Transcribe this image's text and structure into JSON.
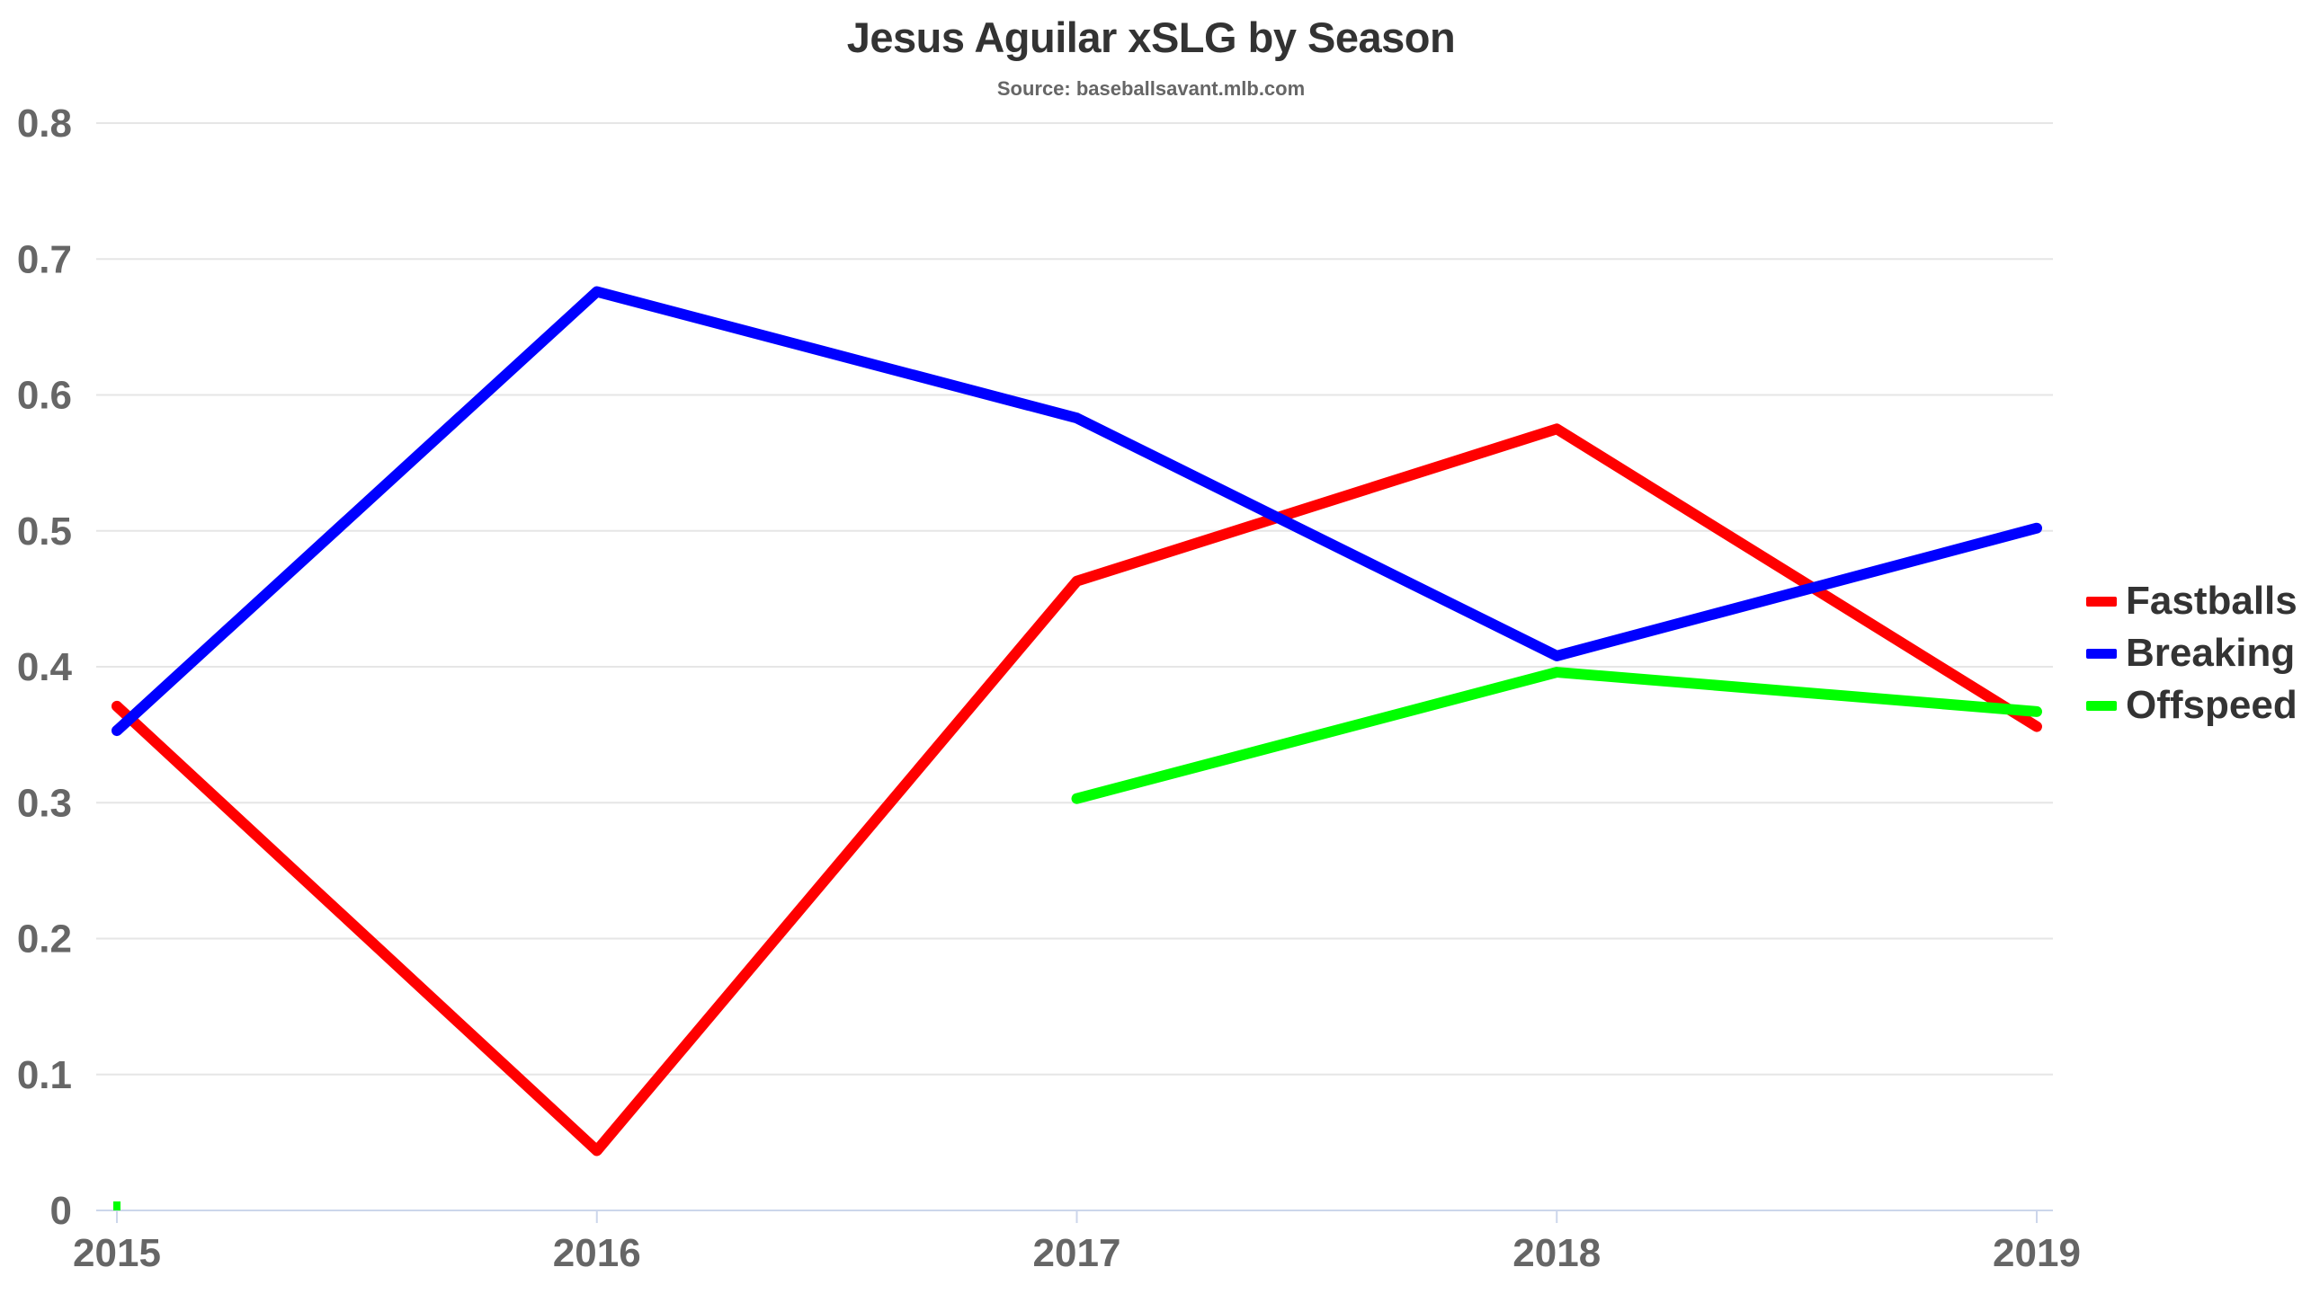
{
  "title": "Jesus Aguilar xSLG by Season",
  "subtitle": "Source: baseballsavant.mlb.com",
  "chart_data": {
    "type": "line",
    "title": "Jesus Aguilar xSLG by Season",
    "subtitle": "Source: baseballsavant.mlb.com",
    "x": [
      "2015",
      "2016",
      "2017",
      "2018",
      "2019"
    ],
    "ylim": [
      0,
      0.8
    ],
    "yticks": [
      "0",
      "0.1",
      "0.2",
      "0.3",
      "0.4",
      "0.5",
      "0.6",
      "0.7",
      "0.8"
    ],
    "grid": true,
    "legend_position": "right",
    "series": [
      {
        "name": "Fastballs",
        "color": "#ff0000",
        "values": [
          0.371,
          0.044,
          0.463,
          0.575,
          0.356
        ]
      },
      {
        "name": "Breaking",
        "color": "#0000ff",
        "values": [
          0.353,
          0.676,
          0.583,
          0.408,
          0.502
        ]
      },
      {
        "name": "Offspeed",
        "color": "#00ff00",
        "values": [
          0.0,
          null,
          0.303,
          0.396,
          0.367
        ]
      }
    ]
  }
}
